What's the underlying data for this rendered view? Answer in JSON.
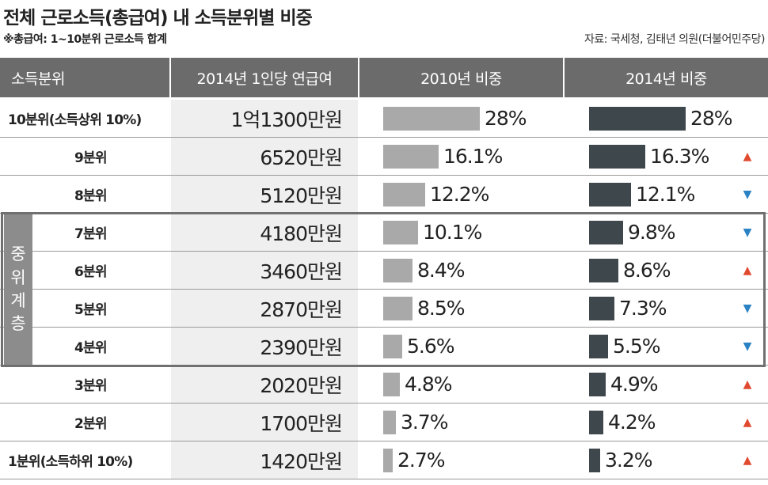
{
  "title": "전체 근로소득(총급여) 내 소득분위별 비중",
  "note": "※총급여: 1~10분위 근로소득 합계",
  "source": "자료: 국세청, 김태년 의원(더불어민주당)",
  "headers": {
    "label": "소득분위",
    "salary": "2014년 1인당 연급여",
    "share2010": "2010년 비중",
    "share2014": "2014년 비중"
  },
  "middle_class_label": "중위계층",
  "chart_data": {
    "type": "table",
    "title": "전체 근로소득(총급여) 내 소득분위별 비중",
    "columns": [
      "소득분위",
      "2014년 1인당 연급여",
      "2010년 비중",
      "2014년 비중"
    ],
    "categories": [
      "10분위(소득상위 10%)",
      "9분위",
      "8분위",
      "7분위",
      "6분위",
      "5분위",
      "4분위",
      "3분위",
      "2분위",
      "1분위(소득하위 10%)"
    ],
    "salary_labels": [
      "1억1300만원",
      "6520만원",
      "5120만원",
      "4180만원",
      "3460만원",
      "2870만원",
      "2390만원",
      "2020만원",
      "1700만원",
      "1420만원"
    ],
    "series": [
      {
        "name": "2010년 비중",
        "values": [
          28,
          16.1,
          12.2,
          10.1,
          8.4,
          8.5,
          5.6,
          4.8,
          3.7,
          2.7
        ],
        "labels": [
          "28%",
          "16.1%",
          "12.2%",
          "10.1%",
          "8.4%",
          "8.5%",
          "5.6%",
          "4.8%",
          "3.7%",
          "2.7%"
        ],
        "color": "#a9a9a9"
      },
      {
        "name": "2014년 비중",
        "values": [
          28,
          16.3,
          12.1,
          9.8,
          8.6,
          7.3,
          5.5,
          4.9,
          4.2,
          3.2
        ],
        "labels": [
          "28%",
          "16.3%",
          "12.1%",
          "9.8%",
          "8.6%",
          "7.3%",
          "5.5%",
          "4.9%",
          "4.2%",
          "3.2%"
        ],
        "color": "#3e474b"
      }
    ],
    "trend": [
      null,
      "up",
      "down",
      "down",
      "up",
      "down",
      "down",
      "up",
      "up",
      "up"
    ],
    "trend_colors": {
      "up": "#e04a2f",
      "down": "#2a82c4"
    },
    "middle_class_rows": [
      "7분위",
      "6분위",
      "5분위",
      "4분위"
    ],
    "header_color": "#6b6b6b"
  }
}
